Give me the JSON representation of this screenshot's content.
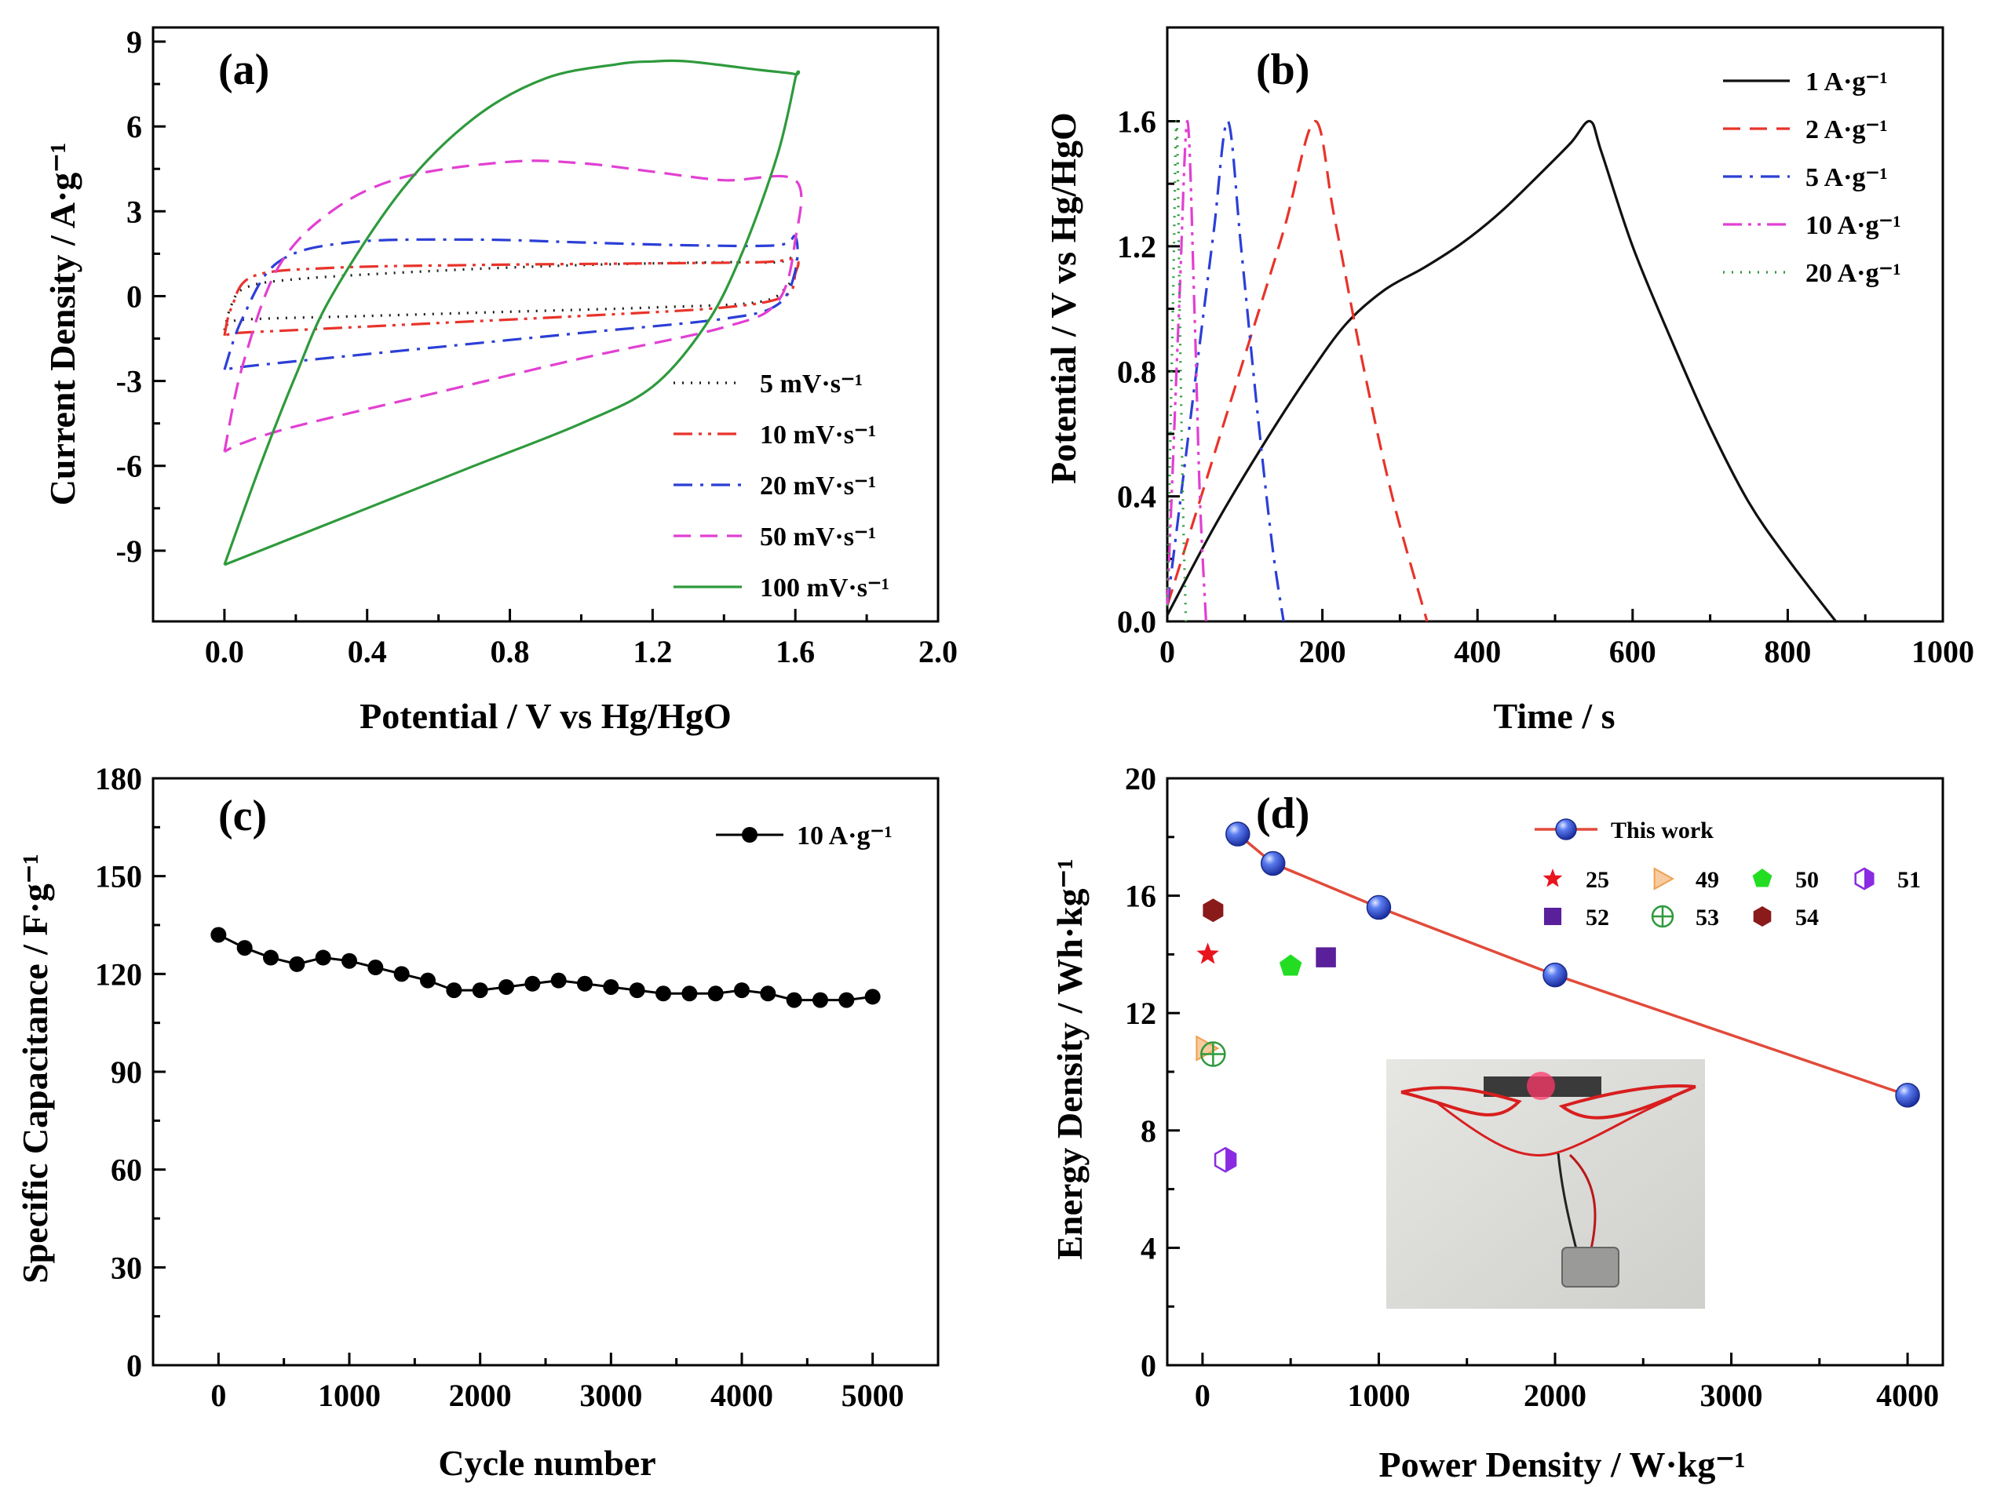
{
  "chart_data": [
    {
      "panel": "(a)",
      "type": "line",
      "xlabel": "Potential / V vs Hg/HgO",
      "ylabel": "Current Density / A·g⁻¹",
      "xlim": [
        -0.2,
        2.0
      ],
      "ylim": [
        -11.5,
        9.5
      ],
      "xticks": [
        "0.0",
        "0.4",
        "0.8",
        "1.2",
        "1.6",
        "2.0"
      ],
      "yticks": [
        "-9",
        "-6",
        "-3",
        "0",
        "3",
        "6",
        "9"
      ],
      "series": [
        {
          "name": "5 mV·s⁻¹",
          "color": "#1a1a1a",
          "dash": "dot",
          "x": [
            0.0,
            0.02,
            0.06,
            0.2,
            0.6,
            1.0,
            1.4,
            1.55,
            1.6,
            1.6,
            1.58,
            1.5,
            1.2,
            0.8,
            0.4,
            0.1,
            0.02,
            0.0
          ],
          "y": [
            -1.2,
            -0.3,
            0.3,
            0.6,
            0.9,
            1.1,
            1.2,
            1.2,
            1.4,
            0.9,
            0.4,
            -0.2,
            -0.4,
            -0.55,
            -0.7,
            -0.8,
            -0.9,
            -1.2
          ]
        },
        {
          "name": "10 mV·s⁻¹",
          "color": "#e8332a",
          "dash": "dashdotdot",
          "x": [
            0.0,
            0.02,
            0.08,
            0.3,
            0.7,
            1.1,
            1.5,
            1.6,
            1.6,
            1.57,
            1.4,
            1.0,
            0.6,
            0.2,
            0.04,
            0.0
          ],
          "y": [
            -1.4,
            -0.4,
            0.7,
            1.0,
            1.1,
            1.15,
            1.2,
            1.3,
            0.8,
            0.0,
            -0.4,
            -0.7,
            -0.95,
            -1.2,
            -1.3,
            -1.4
          ]
        },
        {
          "name": "20 mV·s⁻¹",
          "color": "#2b3fd6",
          "dash": "dashdot",
          "x": [
            0.0,
            0.05,
            0.15,
            0.35,
            0.7,
            1.0,
            1.3,
            1.55,
            1.6,
            1.6,
            1.55,
            1.4,
            1.0,
            0.6,
            0.2,
            0.05,
            0.0
          ],
          "y": [
            -2.6,
            -0.8,
            1.2,
            1.9,
            2.0,
            1.9,
            1.8,
            1.8,
            2.1,
            0.9,
            -0.3,
            -0.8,
            -1.3,
            -1.8,
            -2.3,
            -2.5,
            -2.6
          ]
        },
        {
          "name": "50 mV·s⁻¹",
          "color": "#e23fd2",
          "dash": "dash",
          "x": [
            0.0,
            0.05,
            0.15,
            0.3,
            0.5,
            0.8,
            1.0,
            1.2,
            1.4,
            1.6,
            1.6,
            1.55,
            1.4,
            1.0,
            0.6,
            0.2,
            0.05,
            0.0
          ],
          "y": [
            -5.5,
            -2.5,
            1.0,
            3.0,
            4.2,
            4.75,
            4.7,
            4.4,
            4.1,
            4.1,
            2.0,
            -0.2,
            -1.1,
            -2.2,
            -3.4,
            -4.6,
            -5.2,
            -5.5
          ]
        },
        {
          "name": "100 mV·s⁻¹",
          "color": "#2e9a3c",
          "dash": "solid",
          "x": [
            0.0,
            0.1,
            0.2,
            0.3,
            0.5,
            0.7,
            0.9,
            1.1,
            1.2,
            1.3,
            1.5,
            1.6,
            1.6,
            1.55,
            1.45,
            1.35,
            1.2,
            1.0,
            0.7,
            0.4,
            0.2,
            0.0
          ],
          "y": [
            -9.5,
            -6.0,
            -2.8,
            0.0,
            3.8,
            6.3,
            7.7,
            8.2,
            8.3,
            8.3,
            8.0,
            7.85,
            7.7,
            5.0,
            1.5,
            -1.0,
            -3.2,
            -4.5,
            -6.0,
            -7.5,
            -8.5,
            -9.5
          ]
        }
      ]
    },
    {
      "panel": "(b)",
      "type": "line",
      "xlabel": "Time / s",
      "ylabel": "Potential / V vs Hg/HgO",
      "xlim": [
        0,
        1000
      ],
      "ylim": [
        0,
        1.9
      ],
      "xticks": [
        "0",
        "200",
        "400",
        "600",
        "800",
        "1000"
      ],
      "yticks": [
        "0.0",
        "0.4",
        "0.8",
        "1.2",
        "1.6"
      ],
      "series": [
        {
          "name": "1 A·g⁻¹",
          "color": "#111111",
          "dash": "solid",
          "x": [
            0,
            60,
            120,
            180,
            230,
            280,
            330,
            380,
            430,
            480,
            520,
            545,
            560,
            600,
            650,
            700,
            750,
            800,
            862
          ],
          "y": [
            0.02,
            0.3,
            0.55,
            0.78,
            0.95,
            1.06,
            1.13,
            1.21,
            1.31,
            1.43,
            1.53,
            1.6,
            1.5,
            1.2,
            0.9,
            0.62,
            0.38,
            0.2,
            0.0
          ]
        },
        {
          "name": "2 A·g⁻¹",
          "color": "#e8332a",
          "dash": "dash",
          "x": [
            0,
            50,
            100,
            150,
            190,
            215,
            250,
            290,
            335
          ],
          "y": [
            0.05,
            0.45,
            0.85,
            1.25,
            1.6,
            1.3,
            0.85,
            0.4,
            0.0
          ]
        },
        {
          "name": "5 A·g⁻¹",
          "color": "#2b3fd6",
          "dash": "dashdot",
          "x": [
            0,
            20,
            40,
            60,
            78,
            95,
            115,
            135,
            150
          ],
          "y": [
            0.05,
            0.45,
            0.85,
            1.25,
            1.6,
            1.2,
            0.7,
            0.25,
            0.0
          ]
        },
        {
          "name": "10 A·g⁻¹",
          "color": "#e23fd2",
          "dash": "dashdotdot",
          "x": [
            0,
            8,
            16,
            26,
            35,
            42,
            50
          ],
          "y": [
            0.05,
            0.55,
            1.05,
            1.6,
            1.0,
            0.4,
            0.0
          ]
        },
        {
          "name": "20 A·g⁻¹",
          "color": "#2e9a3c",
          "dash": "dot",
          "x": [
            0,
            4,
            8,
            12,
            16,
            20,
            24
          ],
          "y": [
            0.05,
            0.6,
            1.1,
            1.6,
            1.0,
            0.4,
            0.0
          ]
        }
      ]
    },
    {
      "panel": "(c)",
      "type": "line",
      "xlabel": "Cycle number",
      "ylabel": "Specific Capacitance / F·g⁻¹",
      "xlim": [
        -500,
        5500
      ],
      "ylim": [
        0,
        180
      ],
      "xticks": [
        "0",
        "1000",
        "2000",
        "3000",
        "4000",
        "5000"
      ],
      "yticks": [
        "0",
        "30",
        "60",
        "90",
        "120",
        "150",
        "180"
      ],
      "series": [
        {
          "name": "10 A·g⁻¹",
          "color": "#000000",
          "x": [
            0,
            200,
            400,
            600,
            800,
            1000,
            1200,
            1400,
            1600,
            1800,
            2000,
            2200,
            2400,
            2600,
            2800,
            3000,
            3200,
            3400,
            3600,
            3800,
            4000,
            4200,
            4400,
            4600,
            4800,
            5000
          ],
          "y": [
            132,
            128,
            125,
            123,
            125,
            124,
            122,
            120,
            118,
            115,
            115,
            116,
            117,
            118,
            117,
            116,
            115,
            114,
            114,
            114,
            115,
            114,
            112,
            112,
            112,
            113
          ]
        }
      ]
    },
    {
      "panel": "(d)",
      "type": "scatter",
      "xlabel": "Power Density / W·kg⁻¹",
      "ylabel": "Energy Density / Wh·kg⁻¹",
      "xlim": [
        -200,
        4200
      ],
      "ylim": [
        0,
        20
      ],
      "xticks": [
        "0",
        "1000",
        "2000",
        "3000",
        "4000"
      ],
      "yticks": [
        "0",
        "4",
        "8",
        "12",
        "16",
        "20"
      ],
      "series": [
        {
          "name": "This work",
          "color": "#3a5bdc",
          "line_color": "#e24a3a",
          "marker": "sphere",
          "x": [
            200,
            400,
            1000,
            2000,
            4000
          ],
          "y": [
            18.1,
            17.1,
            15.6,
            13.3,
            9.2
          ]
        },
        {
          "name": "25",
          "color": "#e8141e",
          "marker": "star",
          "x": [
            30
          ],
          "y": [
            14.0
          ]
        },
        {
          "name": "49",
          "color": "#f0a050",
          "marker": "triangle-right",
          "x": [
            20
          ],
          "y": [
            10.8
          ]
        },
        {
          "name": "50",
          "color": "#22dd22",
          "marker": "pentagon",
          "x": [
            500
          ],
          "y": [
            13.6
          ]
        },
        {
          "name": "51",
          "color": "#8a2be2",
          "marker": "half-hexagon",
          "x": [
            130
          ],
          "y": [
            7.0
          ]
        },
        {
          "name": "52",
          "color": "#5a1f9a",
          "marker": "square",
          "x": [
            700
          ],
          "y": [
            13.9
          ]
        },
        {
          "name": "53",
          "color": "#2e9a3c",
          "marker": "circle-cross",
          "x": [
            60
          ],
          "y": [
            10.6
          ]
        },
        {
          "name": "54",
          "color": "#8b1a1a",
          "marker": "hexagon",
          "x": [
            60
          ],
          "y": [
            15.5
          ]
        }
      ],
      "inset": "photo of a lit red LED connected by red wires and alligator clips to a small device"
    }
  ]
}
